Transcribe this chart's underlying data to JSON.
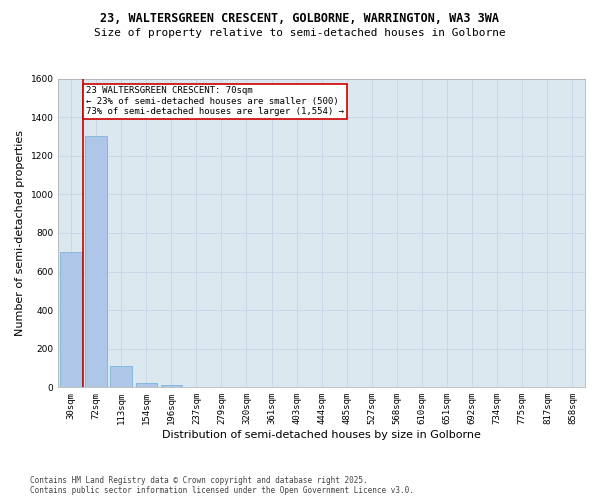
{
  "title_line1": "23, WALTERSGREEN CRESCENT, GOLBORNE, WARRINGTON, WA3 3WA",
  "title_line2": "Size of property relative to semi-detached houses in Golborne",
  "xlabel": "Distribution of semi-detached houses by size in Golborne",
  "ylabel": "Number of semi-detached properties",
  "categories": [
    "30sqm",
    "72sqm",
    "113sqm",
    "154sqm",
    "196sqm",
    "237sqm",
    "279sqm",
    "320sqm",
    "361sqm",
    "403sqm",
    "444sqm",
    "485sqm",
    "527sqm",
    "568sqm",
    "610sqm",
    "651sqm",
    "692sqm",
    "734sqm",
    "775sqm",
    "817sqm",
    "858sqm"
  ],
  "values": [
    700,
    1300,
    110,
    20,
    10,
    0,
    0,
    0,
    0,
    0,
    0,
    0,
    0,
    0,
    0,
    0,
    0,
    0,
    0,
    0,
    0
  ],
  "bar_color": "#aec6e8",
  "bar_edge_color": "#6baed6",
  "grid_color": "#c8d4e8",
  "background_color": "#dce8f0",
  "vline_color": "#cc0000",
  "annotation_title": "23 WALTERSGREEN CRESCENT: 70sqm",
  "annotation_line2": "← 23% of semi-detached houses are smaller (500)",
  "annotation_line3": "73% of semi-detached houses are larger (1,554) →",
  "annotation_box_color": "#cc0000",
  "ylim": [
    0,
    1600
  ],
  "yticks": [
    0,
    200,
    400,
    600,
    800,
    1000,
    1200,
    1400,
    1600
  ],
  "footnote_line1": "Contains HM Land Registry data © Crown copyright and database right 2025.",
  "footnote_line2": "Contains public sector information licensed under the Open Government Licence v3.0.",
  "title_fontsize": 8.5,
  "subtitle_fontsize": 8,
  "tick_fontsize": 6.5,
  "ylabel_fontsize": 8,
  "xlabel_fontsize": 8,
  "annotation_fontsize": 6.5,
  "footnote_fontsize": 5.5
}
